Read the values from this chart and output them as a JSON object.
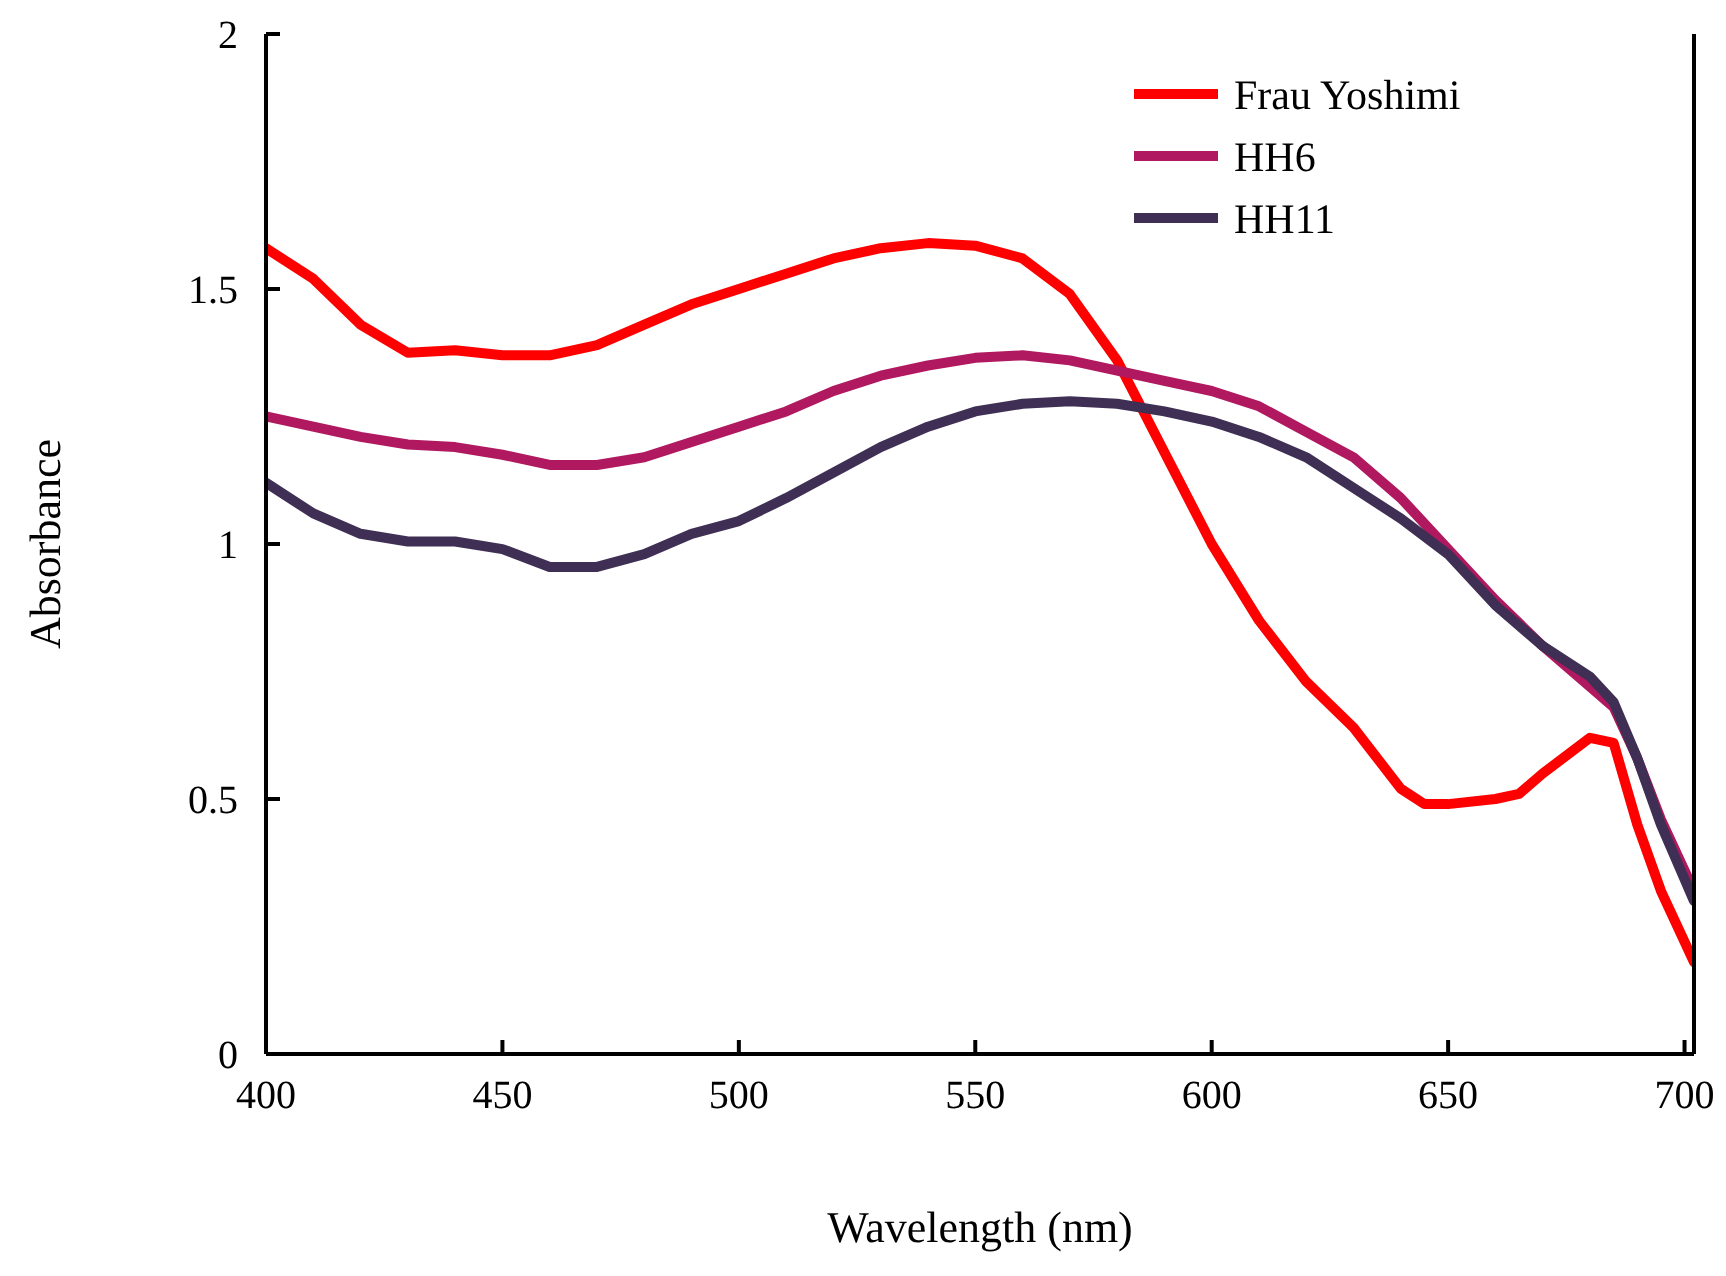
{
  "chart_data": {
    "type": "line",
    "xlabel": "Wavelength (nm)",
    "ylabel": "Absorbance",
    "xlim": [
      400,
      702
    ],
    "xticks": [
      400,
      450,
      500,
      550,
      600,
      650,
      700
    ],
    "ylim": [
      0,
      2
    ],
    "yticks": [
      0,
      0.5,
      1,
      1.5,
      2
    ],
    "grid": false,
    "legend": "top right",
    "marker": "none",
    "line_style": "solid",
    "series": [
      {
        "name": "Frau Yoshimi",
        "color": "#ff0000",
        "x": [
          400,
          410,
          420,
          430,
          440,
          450,
          460,
          470,
          480,
          490,
          500,
          510,
          520,
          530,
          540,
          550,
          560,
          570,
          580,
          590,
          600,
          610,
          620,
          630,
          640,
          645,
          650,
          660,
          665,
          670,
          680,
          685,
          690,
          695,
          702
        ],
        "values": [
          1.58,
          1.52,
          1.43,
          1.375,
          1.38,
          1.37,
          1.37,
          1.39,
          1.43,
          1.47,
          1.5,
          1.53,
          1.56,
          1.58,
          1.59,
          1.585,
          1.56,
          1.49,
          1.36,
          1.18,
          1.0,
          0.85,
          0.73,
          0.64,
          0.52,
          0.49,
          0.49,
          0.5,
          0.51,
          0.55,
          0.62,
          0.61,
          0.45,
          0.32,
          0.18
        ]
      },
      {
        "name": "HH6",
        "color": "#b0185f",
        "x": [
          400,
          420,
          430,
          440,
          450,
          460,
          470,
          480,
          490,
          500,
          510,
          520,
          530,
          540,
          550,
          560,
          570,
          580,
          590,
          600,
          610,
          620,
          630,
          640,
          650,
          660,
          670,
          680,
          685,
          690,
          695,
          702
        ],
        "values": [
          1.25,
          1.21,
          1.195,
          1.19,
          1.175,
          1.155,
          1.155,
          1.17,
          1.2,
          1.23,
          1.26,
          1.3,
          1.33,
          1.35,
          1.365,
          1.37,
          1.36,
          1.34,
          1.32,
          1.3,
          1.27,
          1.22,
          1.17,
          1.09,
          0.99,
          0.89,
          0.8,
          0.72,
          0.68,
          0.58,
          0.46,
          0.32
        ]
      },
      {
        "name": "HH11",
        "color": "#3f2f54",
        "x": [
          400,
          410,
          420,
          430,
          440,
          450,
          460,
          470,
          480,
          490,
          500,
          510,
          520,
          530,
          540,
          550,
          560,
          570,
          580,
          590,
          600,
          610,
          620,
          630,
          640,
          650,
          660,
          670,
          680,
          685,
          690,
          695,
          702
        ],
        "values": [
          1.12,
          1.06,
          1.02,
          1.005,
          1.005,
          0.99,
          0.955,
          0.955,
          0.98,
          1.02,
          1.045,
          1.09,
          1.14,
          1.19,
          1.23,
          1.26,
          1.275,
          1.28,
          1.275,
          1.26,
          1.24,
          1.21,
          1.17,
          1.11,
          1.05,
          0.98,
          0.88,
          0.8,
          0.74,
          0.69,
          0.58,
          0.45,
          0.3
        ]
      }
    ]
  }
}
